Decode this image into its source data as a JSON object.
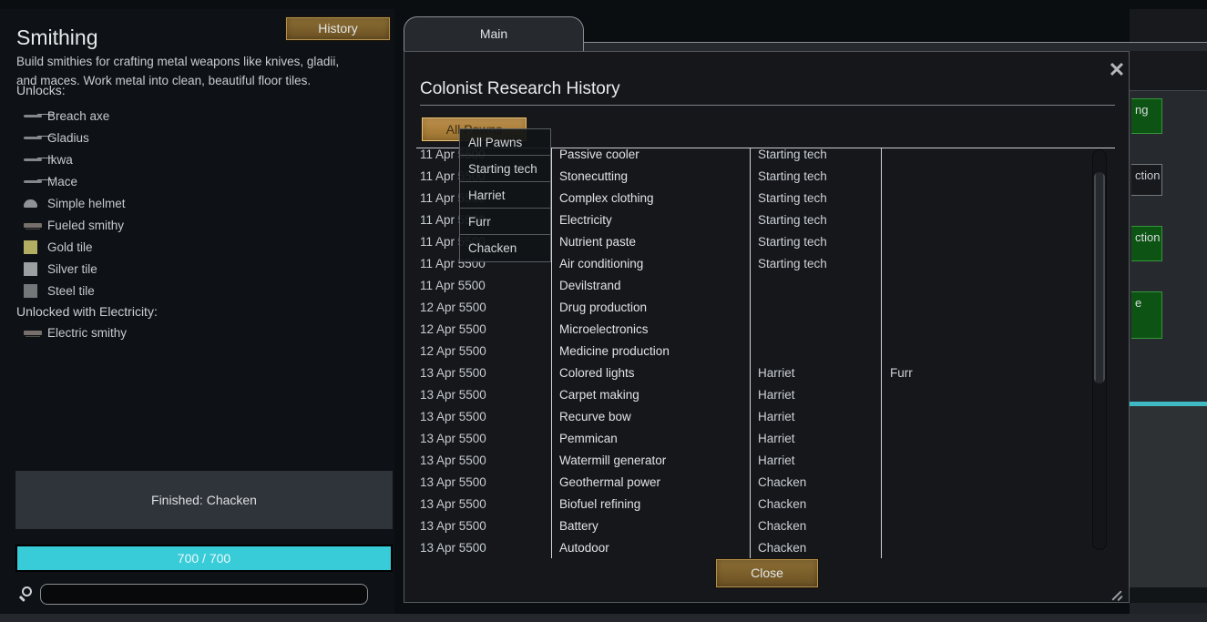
{
  "left_panel": {
    "title": "Smithing",
    "description_line1": "Build smithies for crafting metal weapons like knives, gladii,",
    "description_line2": "and maces. Work metal into clean, beautiful floor tiles.",
    "history_button": "History",
    "unlocks_label": "Unlocks:",
    "unlocks": [
      {
        "label": "Breach axe",
        "icon": "breach-axe-icon",
        "shape": "weapon"
      },
      {
        "label": "Gladius",
        "icon": "gladius-icon",
        "shape": "weapon"
      },
      {
        "label": "Ikwa",
        "icon": "ikwa-icon",
        "shape": "weapon"
      },
      {
        "label": "Mace",
        "icon": "mace-icon",
        "shape": "weapon"
      },
      {
        "label": "Simple helmet",
        "icon": "simple-helmet-icon",
        "shape": "helmet"
      },
      {
        "label": "Fueled smithy",
        "icon": "fueled-smithy-icon",
        "shape": "bench"
      },
      {
        "label": "Gold tile",
        "icon": "gold-tile-icon",
        "shape": "tile",
        "color": "#b3af62"
      },
      {
        "label": "Silver tile",
        "icon": "silver-tile-icon",
        "shape": "tile",
        "color": "#9da0a3"
      },
      {
        "label": "Steel tile",
        "icon": "steel-tile-icon",
        "shape": "tile",
        "color": "#74777a"
      }
    ],
    "electricity_label": "Unlocked with Electricity:",
    "electricity_unlocks": [
      {
        "label": "Electric smithy",
        "icon": "electric-smithy-icon",
        "shape": "bench"
      }
    ],
    "finished_banner": "Finished: Chacken",
    "progress_text": "700 / 700",
    "search": {
      "value": "",
      "placeholder": ""
    }
  },
  "dialog": {
    "tab_label": "Main",
    "title": "Colonist Research History",
    "filter_button_label": "All Pawns",
    "dropdown_options": [
      "All Pawns",
      "Starting tech",
      "Harriet",
      "Furr",
      "Chacken"
    ],
    "close_icon": "✕",
    "close_button_label": "Close",
    "history_rows": [
      {
        "date": "11 Apr 5500",
        "tech": "Passive cooler",
        "researcher": "Starting tech",
        "co_researcher": ""
      },
      {
        "date": "11 Apr 5500",
        "tech": "Stonecutting",
        "researcher": "Starting tech",
        "co_researcher": ""
      },
      {
        "date": "11 Apr 5500",
        "tech": "Complex clothing",
        "researcher": "Starting tech",
        "co_researcher": ""
      },
      {
        "date": "11 Apr 5500",
        "tech": "Electricity",
        "researcher": "Starting tech",
        "co_researcher": ""
      },
      {
        "date": "11 Apr 5500",
        "tech": "Nutrient paste",
        "researcher": "Starting tech",
        "co_researcher": ""
      },
      {
        "date": "11 Apr 5500",
        "tech": "Air conditioning",
        "researcher": "Starting tech",
        "co_researcher": ""
      },
      {
        "date": "11 Apr 5500",
        "tech": "Devilstrand",
        "researcher": "",
        "co_researcher": ""
      },
      {
        "date": "12 Apr 5500",
        "tech": "Drug production",
        "researcher": "",
        "co_researcher": ""
      },
      {
        "date": "12 Apr 5500",
        "tech": "Microelectronics",
        "researcher": "",
        "co_researcher": ""
      },
      {
        "date": "12 Apr 5500",
        "tech": "Medicine production",
        "researcher": "",
        "co_researcher": ""
      },
      {
        "date": "13 Apr 5500",
        "tech": "Colored lights",
        "researcher": "Harriet",
        "co_researcher": "Furr"
      },
      {
        "date": "13 Apr 5500",
        "tech": "Carpet making",
        "researcher": "Harriet",
        "co_researcher": ""
      },
      {
        "date": "13 Apr 5500",
        "tech": "Recurve bow",
        "researcher": "Harriet",
        "co_researcher": ""
      },
      {
        "date": "13 Apr 5500",
        "tech": "Pemmican",
        "researcher": "Harriet",
        "co_researcher": ""
      },
      {
        "date": "13 Apr 5500",
        "tech": "Watermill generator",
        "researcher": "Harriet",
        "co_researcher": ""
      },
      {
        "date": "13 Apr 5500",
        "tech": "Geothermal power",
        "researcher": "Chacken",
        "co_researcher": ""
      },
      {
        "date": "13 Apr 5500",
        "tech": "Biofuel refining",
        "researcher": "Chacken",
        "co_researcher": ""
      },
      {
        "date": "13 Apr 5500",
        "tech": "Battery",
        "researcher": "Chacken",
        "co_researcher": ""
      },
      {
        "date": "13 Apr 5500",
        "tech": "Autodoor",
        "researcher": "Chacken",
        "co_researcher": ""
      }
    ]
  },
  "background_tree": {
    "partial_nodes": [
      {
        "text": "ng",
        "style": "finished"
      },
      {
        "text": "ction",
        "style": "locked"
      },
      {
        "text": "ction",
        "style": "finished"
      },
      {
        "text": "e",
        "style": "finished"
      }
    ]
  },
  "colors": {
    "accent_cyan": "#38ccd9",
    "button_gold": "#7d6230",
    "button_gold_active": "#b0853f",
    "finished_green": "#0d5414"
  }
}
